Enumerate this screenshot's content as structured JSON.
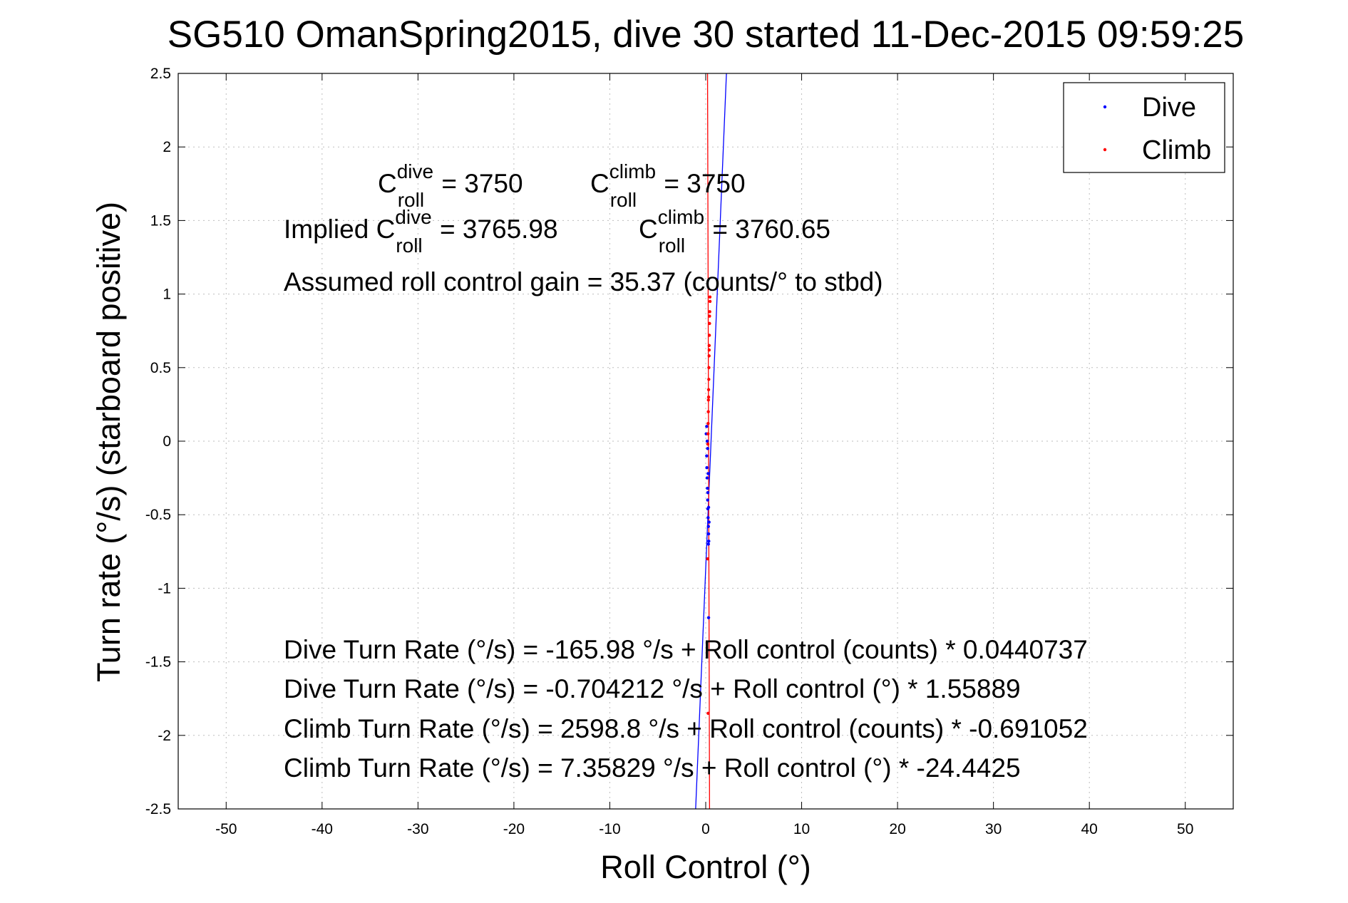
{
  "chart_data": {
    "type": "scatter",
    "title": "SG510 OmanSpring2015, dive 30 started 11-Dec-2015 09:59:25",
    "xlabel": "Roll Control (°)",
    "ylabel": "Turn rate (°/s) (starboard positive)",
    "xlim": [
      -55,
      55
    ],
    "ylim": [
      -2.5,
      2.5
    ],
    "grid": true,
    "legend_position": "top-right",
    "x_ticks": [
      -50,
      -40,
      -30,
      -20,
      -10,
      0,
      10,
      20,
      30,
      40,
      50
    ],
    "x_tick_labels": [
      "-50",
      "-40",
      "-30",
      "-20",
      "-10",
      "0",
      "10",
      "20",
      "30",
      "40",
      "50"
    ],
    "y_ticks": [
      2.5,
      2,
      1.5,
      1,
      0.5,
      0,
      -0.5,
      -1,
      -1.5,
      -2,
      -2.5
    ],
    "y_tick_labels": [
      "2.5",
      "2",
      "1.5",
      "1",
      "0.5",
      "0",
      "-0.5",
      "-1",
      "-1.5",
      "-2",
      "-2.5"
    ],
    "series": [
      {
        "name": "Dive",
        "color": "#0000ff",
        "marker": "dot",
        "points": [
          {
            "x": 0.05,
            "y": 0.05
          },
          {
            "x": 0.1,
            "y": -0.1
          },
          {
            "x": 0.12,
            "y": -0.18
          },
          {
            "x": 0.15,
            "y": -0.25
          },
          {
            "x": 0.18,
            "y": -0.32
          },
          {
            "x": 0.2,
            "y": -0.4
          },
          {
            "x": 0.22,
            "y": -0.46
          },
          {
            "x": 0.25,
            "y": -0.52
          },
          {
            "x": 0.28,
            "y": -0.58
          },
          {
            "x": 0.3,
            "y": -0.63
          },
          {
            "x": 0.32,
            "y": -0.68
          },
          {
            "x": 0.25,
            "y": -0.22
          },
          {
            "x": 0.2,
            "y": -0.05
          },
          {
            "x": 0.3,
            "y": -0.45
          },
          {
            "x": 0.35,
            "y": -0.55
          },
          {
            "x": 0.15,
            "y": 0.0
          },
          {
            "x": 0.22,
            "y": -0.35
          },
          {
            "x": 0.28,
            "y": -0.7
          },
          {
            "x": 0.3,
            "y": -1.2
          },
          {
            "x": 0.1,
            "y": 0.1
          }
        ],
        "fit_line": [
          {
            "x": -1.05,
            "y": -2.5
          },
          {
            "x": 2.16,
            "y": 2.5
          }
        ]
      },
      {
        "name": "Climb",
        "color": "#ff0000",
        "marker": "dot",
        "points": [
          {
            "x": 0.45,
            "y": 0.95
          },
          {
            "x": 0.42,
            "y": 0.88
          },
          {
            "x": 0.4,
            "y": 0.8
          },
          {
            "x": 0.38,
            "y": 0.72
          },
          {
            "x": 0.36,
            "y": 0.65
          },
          {
            "x": 0.35,
            "y": 0.58
          },
          {
            "x": 0.33,
            "y": 0.5
          },
          {
            "x": 0.32,
            "y": 0.42
          },
          {
            "x": 0.3,
            "y": 0.35
          },
          {
            "x": 0.28,
            "y": 0.28
          },
          {
            "x": 0.27,
            "y": 0.2
          },
          {
            "x": 0.25,
            "y": 0.12
          },
          {
            "x": 0.24,
            "y": 0.05
          },
          {
            "x": 0.22,
            "y": -0.02
          },
          {
            "x": 0.4,
            "y": 0.85
          },
          {
            "x": 0.44,
            "y": 0.98
          },
          {
            "x": 0.36,
            "y": 0.62
          },
          {
            "x": 0.3,
            "y": 0.3
          },
          {
            "x": 0.2,
            "y": -0.8
          },
          {
            "x": 0.25,
            "y": -1.85
          }
        ],
        "fit_line": [
          {
            "x": 0.4,
            "y": -2.5
          },
          {
            "x": 0.19,
            "y": 2.5
          }
        ]
      }
    ],
    "annotations": [
      {
        "id": "c_roll_dive",
        "base": "C",
        "sup": "dive",
        "sub": "roll",
        "suffix": " = 3750"
      },
      {
        "id": "c_roll_climb",
        "base": "C",
        "sup": "climb",
        "sub": "roll",
        "suffix": " = 3750"
      },
      {
        "id": "implied_dive",
        "prefix": "Implied ",
        "base": "C",
        "sup": "dive",
        "sub": "roll",
        "suffix": " = 3765.98"
      },
      {
        "id": "implied_climb",
        "base": "C",
        "sup": "climb",
        "sub": "roll",
        "suffix": " = 3760.65"
      },
      {
        "id": "gain",
        "text": "Assumed roll control gain = 35.37 (counts/° to stbd)"
      },
      {
        "id": "eq1",
        "text": "Dive Turn Rate (°/s) = -165.98 °/s + Roll control (counts) * 0.0440737"
      },
      {
        "id": "eq2",
        "text": "Dive Turn Rate (°/s) = -0.704212 °/s + Roll control (°) * 1.55889"
      },
      {
        "id": "eq3",
        "text": "Climb Turn Rate (°/s) = 2598.8 °/s + Roll control (counts) * -0.691052"
      },
      {
        "id": "eq4",
        "text": "Climb Turn Rate (°/s) = 7.35829 °/s + Roll control (°) * -24.4425"
      }
    ]
  }
}
